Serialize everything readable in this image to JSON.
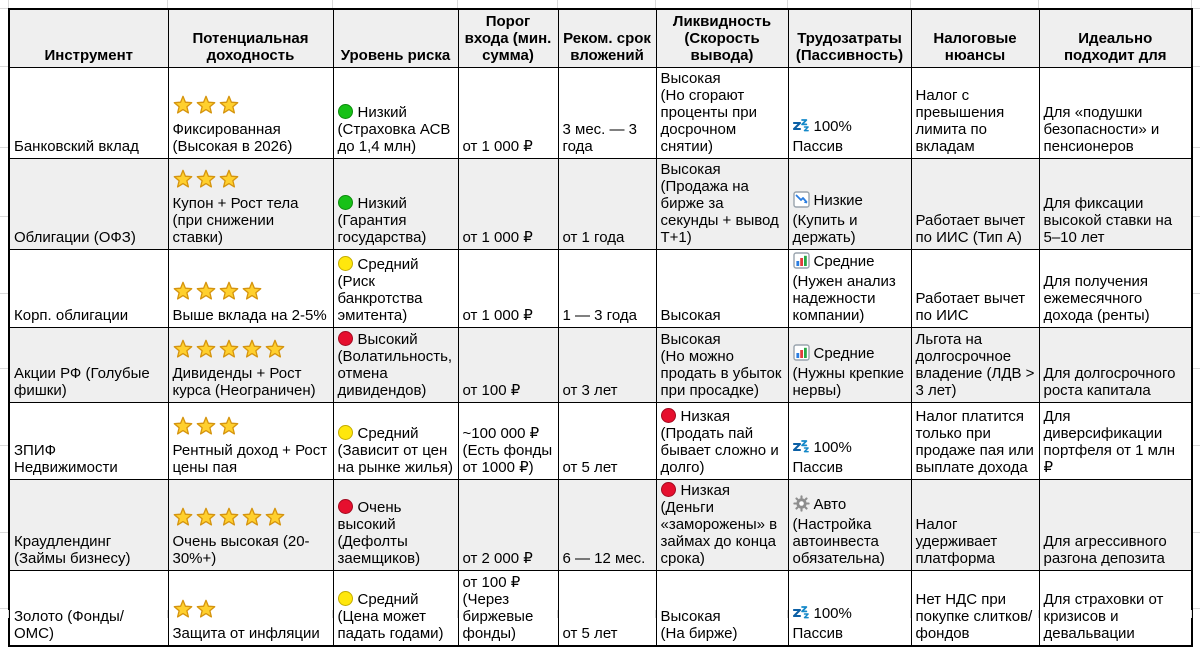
{
  "colors": {
    "header_bg": "#efefef",
    "alt_row_bg": "#efefef",
    "border": "#000000",
    "star": "#ffd02e",
    "risk_green": "#17c117",
    "risk_yellow": "#ffe70d",
    "risk_red": "#e60f2e",
    "effort_icon_blue": "#0b5fa5"
  },
  "table": {
    "headers": [
      {
        "id": "instrument",
        "label": "Инструмент"
      },
      {
        "id": "yield",
        "label": "Потенциальная доходность"
      },
      {
        "id": "risk",
        "label": "Уровень риска"
      },
      {
        "id": "entry",
        "label": "Порог входа (мин. сумма)"
      },
      {
        "id": "term",
        "label": "Реком. срок вложений"
      },
      {
        "id": "liquidity",
        "label": "Ликвидность (Скорость вывода)"
      },
      {
        "id": "effort",
        "label": "Трудозатраты (Пассивность)"
      },
      {
        "id": "tax",
        "label": "Налоговые нюансы"
      },
      {
        "id": "ideal",
        "label": "Идеально подходит для"
      }
    ],
    "rows": [
      {
        "instrument": "Банковский вклад",
        "yield": {
          "stars": 3,
          "text": "Фиксированная (Высокая в 2026)"
        },
        "risk": {
          "color": "green",
          "label": "Низкий",
          "note": "(Страховка АСВ до 1,4 млн)"
        },
        "entry": "от 1 000 ₽",
        "term": "3 мес. — 3 года",
        "liquidity": {
          "color": "",
          "label": "Высокая",
          "note": "(Но сгорают проценты при досрочном снятии)"
        },
        "effort": {
          "icon": "sleep-icon",
          "label": "100%",
          "note": "Пассив"
        },
        "tax": "Налог с превышения лимита по вкладам",
        "ideal": "Для «подушки безопасности» и пенсионеров"
      },
      {
        "instrument": "Облигации (ОФЗ)",
        "yield": {
          "stars": 3,
          "text": "Купон + Рост тела (при снижении ставки)"
        },
        "risk": {
          "color": "green",
          "label": "Низкий",
          "note": "(Гарантия государства)"
        },
        "entry": "от 1 000 ₽",
        "term": "от 1 года",
        "liquidity": {
          "color": "",
          "label": "Высокая",
          "note": "(Продажа на бирже за секунды + вывод Т+1)"
        },
        "effort": {
          "icon": "chart-down-icon",
          "label": "Низкие",
          "note": "(Купить и держать)"
        },
        "tax": "Работает вычет по ИИС (Тип А)",
        "ideal": "Для фиксации высокой ставки на 5–10 лет"
      },
      {
        "instrument": "Корп. облигации",
        "yield": {
          "stars": 4,
          "text": "Выше вклада на 2-5%"
        },
        "risk": {
          "color": "yellow",
          "label": "Средний",
          "note": "(Риск банкротства эмитента)"
        },
        "entry": "от 1 000 ₽",
        "term": "1 — 3 года",
        "liquidity": {
          "color": "",
          "label": "Высокая",
          "note": ""
        },
        "effort": {
          "icon": "bar-chart-icon",
          "label": "Средние",
          "note": "(Нужен анализ надежности компании)"
        },
        "tax": "Работает вычет по ИИС",
        "ideal": "Для получения ежемесячного дохода (ренты)"
      },
      {
        "instrument": "Акции РФ (Голубые фишки)",
        "yield": {
          "stars": 5,
          "text": "Дивиденды + Рост курса (Неограничен)"
        },
        "risk": {
          "color": "red",
          "label": "Высокий",
          "note": "(Волатильность, отмена дивидендов)"
        },
        "entry": "от 100 ₽",
        "term": "от 3 лет",
        "liquidity": {
          "color": "",
          "label": "Высокая",
          "note": "(Но можно продать в убыток при просадке)"
        },
        "effort": {
          "icon": "bar-chart-icon",
          "label": "Средние",
          "note": "(Нужны крепкие нервы)"
        },
        "tax": "Льгота на долгосрочное владение (ЛДВ > 3 лет)",
        "ideal": "Для долгосрочного роста капитала"
      },
      {
        "instrument": "ЗПИФ Недвижимости",
        "yield": {
          "stars": 3,
          "text": "Рентный доход + Рост цены пая"
        },
        "risk": {
          "color": "yellow",
          "label": "Средний",
          "note": "(Зависит от цен на рынке жилья)"
        },
        "entry": "~100 000 ₽ (Есть фонды от 1000 ₽)",
        "term": "от 5 лет",
        "liquidity": {
          "color": "red",
          "label": "Низкая",
          "note": "(Продать пай бывает сложно и долго)"
        },
        "effort": {
          "icon": "sleep-icon",
          "label": "100%",
          "note": "Пассив"
        },
        "tax": "Налог платится только при продаже пая или выплате дохода",
        "ideal": "Для диверсификации портфеля от 1 млн ₽"
      },
      {
        "instrument": "Краудлендинг (Займы бизнесу)",
        "yield": {
          "stars": 5,
          "text": "Очень высокая (20-30%+)"
        },
        "risk": {
          "color": "red",
          "label": "Очень высокий",
          "note": "(Дефолты заемщиков)"
        },
        "entry": "от 2 000 ₽",
        "term": "6 — 12 мес.",
        "liquidity": {
          "color": "red",
          "label": "Низкая",
          "note": "(Деньги «заморожены» в займах до конца срока)"
        },
        "effort": {
          "icon": "gear-icon",
          "label": "Авто",
          "note": "(Настройка автоинвеста обязательна)"
        },
        "tax": "Налог удерживает платформа",
        "ideal": "Для агрессивного разгона депозита"
      },
      {
        "instrument": "Золото (Фонды/ОМС)",
        "yield": {
          "stars": 2,
          "text": "Защита от инфляции"
        },
        "risk": {
          "color": "yellow",
          "label": "Средний",
          "note": "(Цена может падать годами)"
        },
        "entry": "от 100 ₽ (Через биржевые фонды)",
        "term": "от 5 лет",
        "liquidity": {
          "color": "",
          "label": "Высокая",
          "note": "(На бирже)"
        },
        "effort": {
          "icon": "sleep-icon",
          "label": "100%",
          "note": "Пассив"
        },
        "tax": "Нет НДС при покупке слитков/фондов",
        "ideal": "Для страховки от кризисов и девальвации"
      }
    ]
  }
}
